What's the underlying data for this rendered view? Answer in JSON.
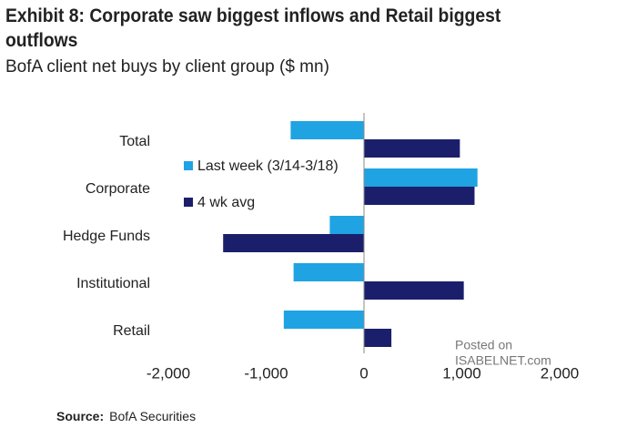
{
  "chart_data": {
    "type": "hbar",
    "title": "Exhibit 8: Corporate saw biggest inflows and Retail biggest outflows",
    "subtitle": "BofA client net buys by client group ($ mn)",
    "categories": [
      "Total",
      "Corporate",
      "Hedge Funds",
      "Institutional",
      "Retail"
    ],
    "series": [
      {
        "name": "Last week (3/14-3/18)",
        "color": "#1fa3e3",
        "values": [
          -750,
          1160,
          -350,
          -720,
          -820
        ]
      },
      {
        "name": "4 wk avg",
        "color": "#1b1f6b",
        "values": [
          980,
          1130,
          -1440,
          1020,
          280
        ]
      }
    ],
    "xlim": [
      -2000,
      2000
    ],
    "xticks": [
      {
        "value": -2000,
        "label": "-2,000"
      },
      {
        "value": -1000,
        "label": "-1,000"
      },
      0,
      {
        "value": 1000,
        "label": "1,000"
      },
      {
        "value": 2000,
        "label": "2,000"
      }
    ],
    "source_label": "Source:",
    "source": "BofA Securities",
    "watermark": [
      "Posted on",
      "ISABELNET.com"
    ]
  }
}
